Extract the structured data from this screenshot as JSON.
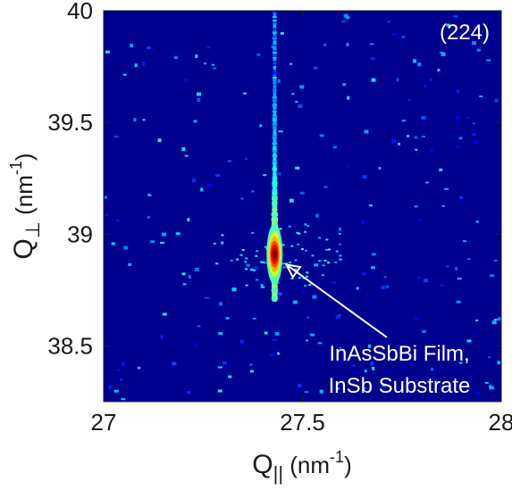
{
  "chart_data": {
    "type": "heatmap",
    "title": "",
    "panel_label": "(224)",
    "xlabel": {
      "main": "Q",
      "sub": "||",
      "unit_pre": " (nm",
      "unit_sup": "-1",
      "unit_post": ")"
    },
    "ylabel": {
      "main": "Q",
      "sub": "⊥",
      "unit_pre": " (nm",
      "unit_sup": "-1",
      "unit_post": ")"
    },
    "xlim": [
      27,
      28
    ],
    "ylim": [
      38.25,
      40
    ],
    "xticks": [
      27,
      27.5,
      28
    ],
    "xtick_labels": [
      "27",
      "27.5",
      "28"
    ],
    "yticks": [
      38.5,
      39,
      39.5,
      40
    ],
    "ytick_labels": [
      "38.5",
      "39",
      "39.5",
      "40"
    ],
    "colormap": "jet",
    "background_color": "#00008f",
    "peak": {
      "x": 27.43,
      "y": 38.91,
      "intensity": 1.0
    },
    "streak": {
      "x": 27.43,
      "y_from": 38.7,
      "y_to": 40.0
    },
    "annotation": {
      "lines": [
        "InAsSbBi Film,",
        "InSb Substrate"
      ],
      "arrow_to": {
        "x": 27.45,
        "y": 38.88
      }
    },
    "grid": false
  }
}
